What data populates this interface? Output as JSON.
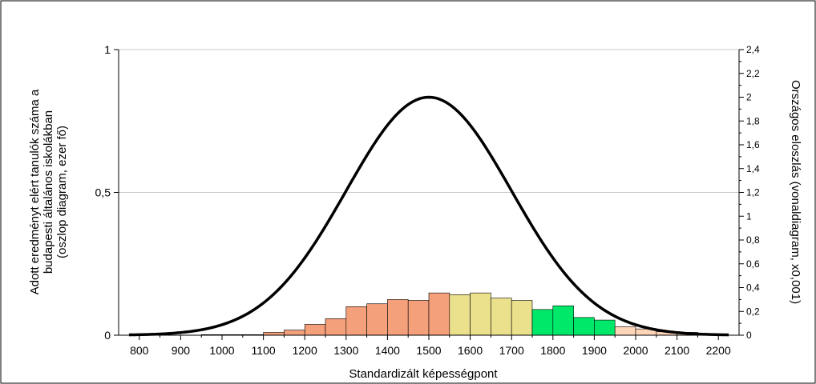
{
  "chart_data": {
    "type": "bar",
    "title": "",
    "xlabel": "Standardizált képességpont",
    "ylabel_left_lines": [
      "Adott eredményt elért tanulók száma a",
      "budapesti általános iskolákban",
      "(oszlop diagram, ezer fő)"
    ],
    "ylabel_right": "Országos eloszlás (vonaldiagram, x0,001)",
    "xlim": [
      750,
      2250
    ],
    "ylim_left": [
      0,
      1
    ],
    "ylim_right": [
      0,
      2.4
    ],
    "x_ticks": [
      "800",
      "900",
      "1000",
      "1100",
      "1200",
      "1300",
      "1400",
      "1500",
      "1600",
      "1700",
      "1800",
      "1900",
      "2000",
      "2100",
      "2200"
    ],
    "x_tick_values": [
      800,
      900,
      1000,
      1100,
      1200,
      1300,
      1400,
      1500,
      1600,
      1700,
      1800,
      1900,
      2000,
      2100,
      2200
    ],
    "y_left_ticks": [
      "0",
      "0,5",
      "1"
    ],
    "y_left_tick_values": [
      0,
      0.5,
      1
    ],
    "y_right_ticks": [
      "0",
      "0,2",
      "0,4",
      "0,6",
      "0,8",
      "1",
      "1,2",
      "1,4",
      "1,6",
      "1,8",
      "2",
      "2,2",
      "2,4"
    ],
    "y_right_tick_values": [
      0,
      0.2,
      0.4,
      0.6,
      0.8,
      1,
      1.2,
      1.4,
      1.6,
      1.8,
      2,
      2.2,
      2.4
    ],
    "grid": "horizontal",
    "bar_width": 50,
    "bars": [
      {
        "x": 975,
        "value": 0.002,
        "color": "#f4a07a"
      },
      {
        "x": 1025,
        "value": 0.002,
        "color": "#f4a07a"
      },
      {
        "x": 1075,
        "value": 0.002,
        "color": "#f4a07a"
      },
      {
        "x": 1125,
        "value": 0.01,
        "color": "#f4a07a"
      },
      {
        "x": 1175,
        "value": 0.018,
        "color": "#f4a07a"
      },
      {
        "x": 1225,
        "value": 0.038,
        "color": "#f4a07a"
      },
      {
        "x": 1275,
        "value": 0.058,
        "color": "#f4a07a"
      },
      {
        "x": 1325,
        "value": 0.1,
        "color": "#f4a07a"
      },
      {
        "x": 1375,
        "value": 0.11,
        "color": "#f4a07a"
      },
      {
        "x": 1425,
        "value": 0.125,
        "color": "#f4a07a"
      },
      {
        "x": 1475,
        "value": 0.122,
        "color": "#f4a07a"
      },
      {
        "x": 1525,
        "value": 0.148,
        "color": "#f4a07a"
      },
      {
        "x": 1575,
        "value": 0.142,
        "color": "#ebe08c"
      },
      {
        "x": 1625,
        "value": 0.148,
        "color": "#ebe08c"
      },
      {
        "x": 1675,
        "value": 0.13,
        "color": "#ebe08c"
      },
      {
        "x": 1725,
        "value": 0.122,
        "color": "#ebe08c"
      },
      {
        "x": 1775,
        "value": 0.09,
        "color": "#00e86a"
      },
      {
        "x": 1825,
        "value": 0.103,
        "color": "#00e86a"
      },
      {
        "x": 1875,
        "value": 0.062,
        "color": "#00e86a"
      },
      {
        "x": 1925,
        "value": 0.053,
        "color": "#00e86a"
      },
      {
        "x": 1975,
        "value": 0.03,
        "color": "#ffd5b8"
      },
      {
        "x": 2025,
        "value": 0.022,
        "color": "#ffd5b8"
      },
      {
        "x": 2075,
        "value": 0.012,
        "color": "#ffd5b8"
      },
      {
        "x": 2125,
        "value": 0.01,
        "color": "#ffd5b8"
      },
      {
        "x": 2175,
        "value": 0.003,
        "color": "#ffd5b8"
      }
    ],
    "line": {
      "type": "normal",
      "mean": 1500,
      "sd": 200,
      "peak_right_axis": 2.0,
      "x_range": [
        775,
        2225
      ],
      "color": "#000000"
    }
  }
}
